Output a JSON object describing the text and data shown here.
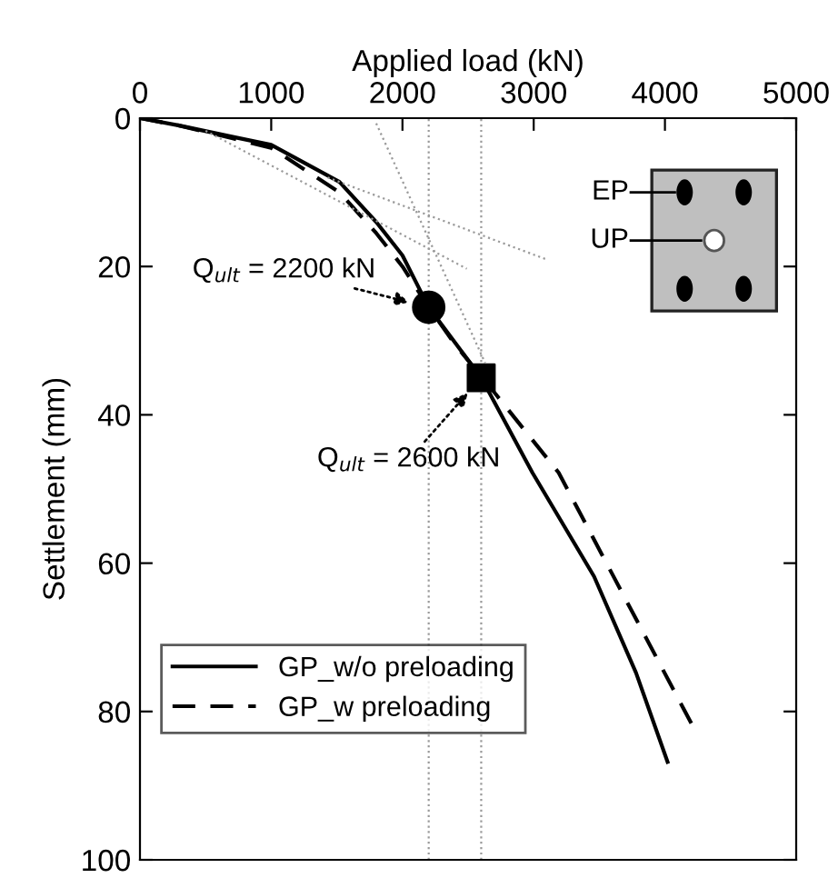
{
  "chart_data": {
    "type": "line",
    "xlabel": "Applied load (kN)",
    "ylabel": "Settlement (mm)",
    "xlim": [
      0,
      5000
    ],
    "xticks": [
      0,
      1000,
      2000,
      3000,
      4000,
      5000
    ],
    "ylim": [
      100,
      0
    ],
    "yticks": [
      0,
      20,
      40,
      60,
      80,
      100
    ],
    "grid": false,
    "legend": "bottom left",
    "tick_labels": "xy",
    "series": [
      {
        "name": "GP_w/o preloading",
        "color": "#000000",
        "line_style": "solid",
        "marker": "none",
        "x": [
          0,
          300,
          700,
          1000,
          1520,
          1800,
          2000,
          2200,
          2600,
          2990,
          3460,
          3780,
          4020
        ],
        "values": [
          0,
          1,
          2.5,
          3.6,
          8.6,
          14,
          18.5,
          25.5,
          35,
          47.8,
          61.8,
          74.8,
          86.8
        ]
      },
      {
        "name": "GP_w preloading",
        "color": "#000000",
        "line_style": "dashed",
        "marker": "none",
        "x": [
          0,
          300,
          700,
          1000,
          1520,
          1800,
          2000,
          2200,
          2400,
          2710,
          3190,
          3680,
          4210
        ],
        "values": [
          0,
          1,
          2.7,
          4,
          10,
          15.5,
          20,
          25.5,
          30.5,
          37.2,
          47.8,
          64.2,
          81.9
        ]
      },
      {
        "type": "scatter",
        "color": "#000000",
        "marker": "circle",
        "x": [
          2200
        ],
        "values": [
          25.5
        ]
      },
      {
        "type": "scatter",
        "color": "#000000",
        "marker": "square",
        "x": [
          2600
        ],
        "values": [
          35
        ]
      },
      {
        "color": "#9a9a9a",
        "line_style": "dotted",
        "marker": "none",
        "x": [
          1800,
          2630
        ],
        "values": [
          0.7,
          33
        ]
      },
      {
        "color": "#9a9a9a",
        "line_style": "dotted",
        "marker": "none",
        "x": [
          1430,
          3090
        ],
        "values": [
          8,
          19
        ]
      },
      {
        "color": "#9a9a9a",
        "line_style": "dotted",
        "marker": "none",
        "x": [
          500,
          2490
        ],
        "values": [
          1.7,
          20.3
        ]
      }
    ],
    "ref_lines": [
      {
        "axis": "x",
        "value": 2200,
        "color": "#9a9a9a",
        "line_style": "dotted"
      },
      {
        "axis": "x",
        "value": 2600,
        "color": "#9a9a9a",
        "line_style": "dotted"
      }
    ],
    "annotations": [
      {
        "text": "Q$_{ult}$ = 2200 kN",
        "x": 2200,
        "y": 25.5
      },
      {
        "text": "Q$_{ult}$ = 2600 kN",
        "x": 2600,
        "y": 35
      },
      "EP",
      "UP"
    ]
  }
}
